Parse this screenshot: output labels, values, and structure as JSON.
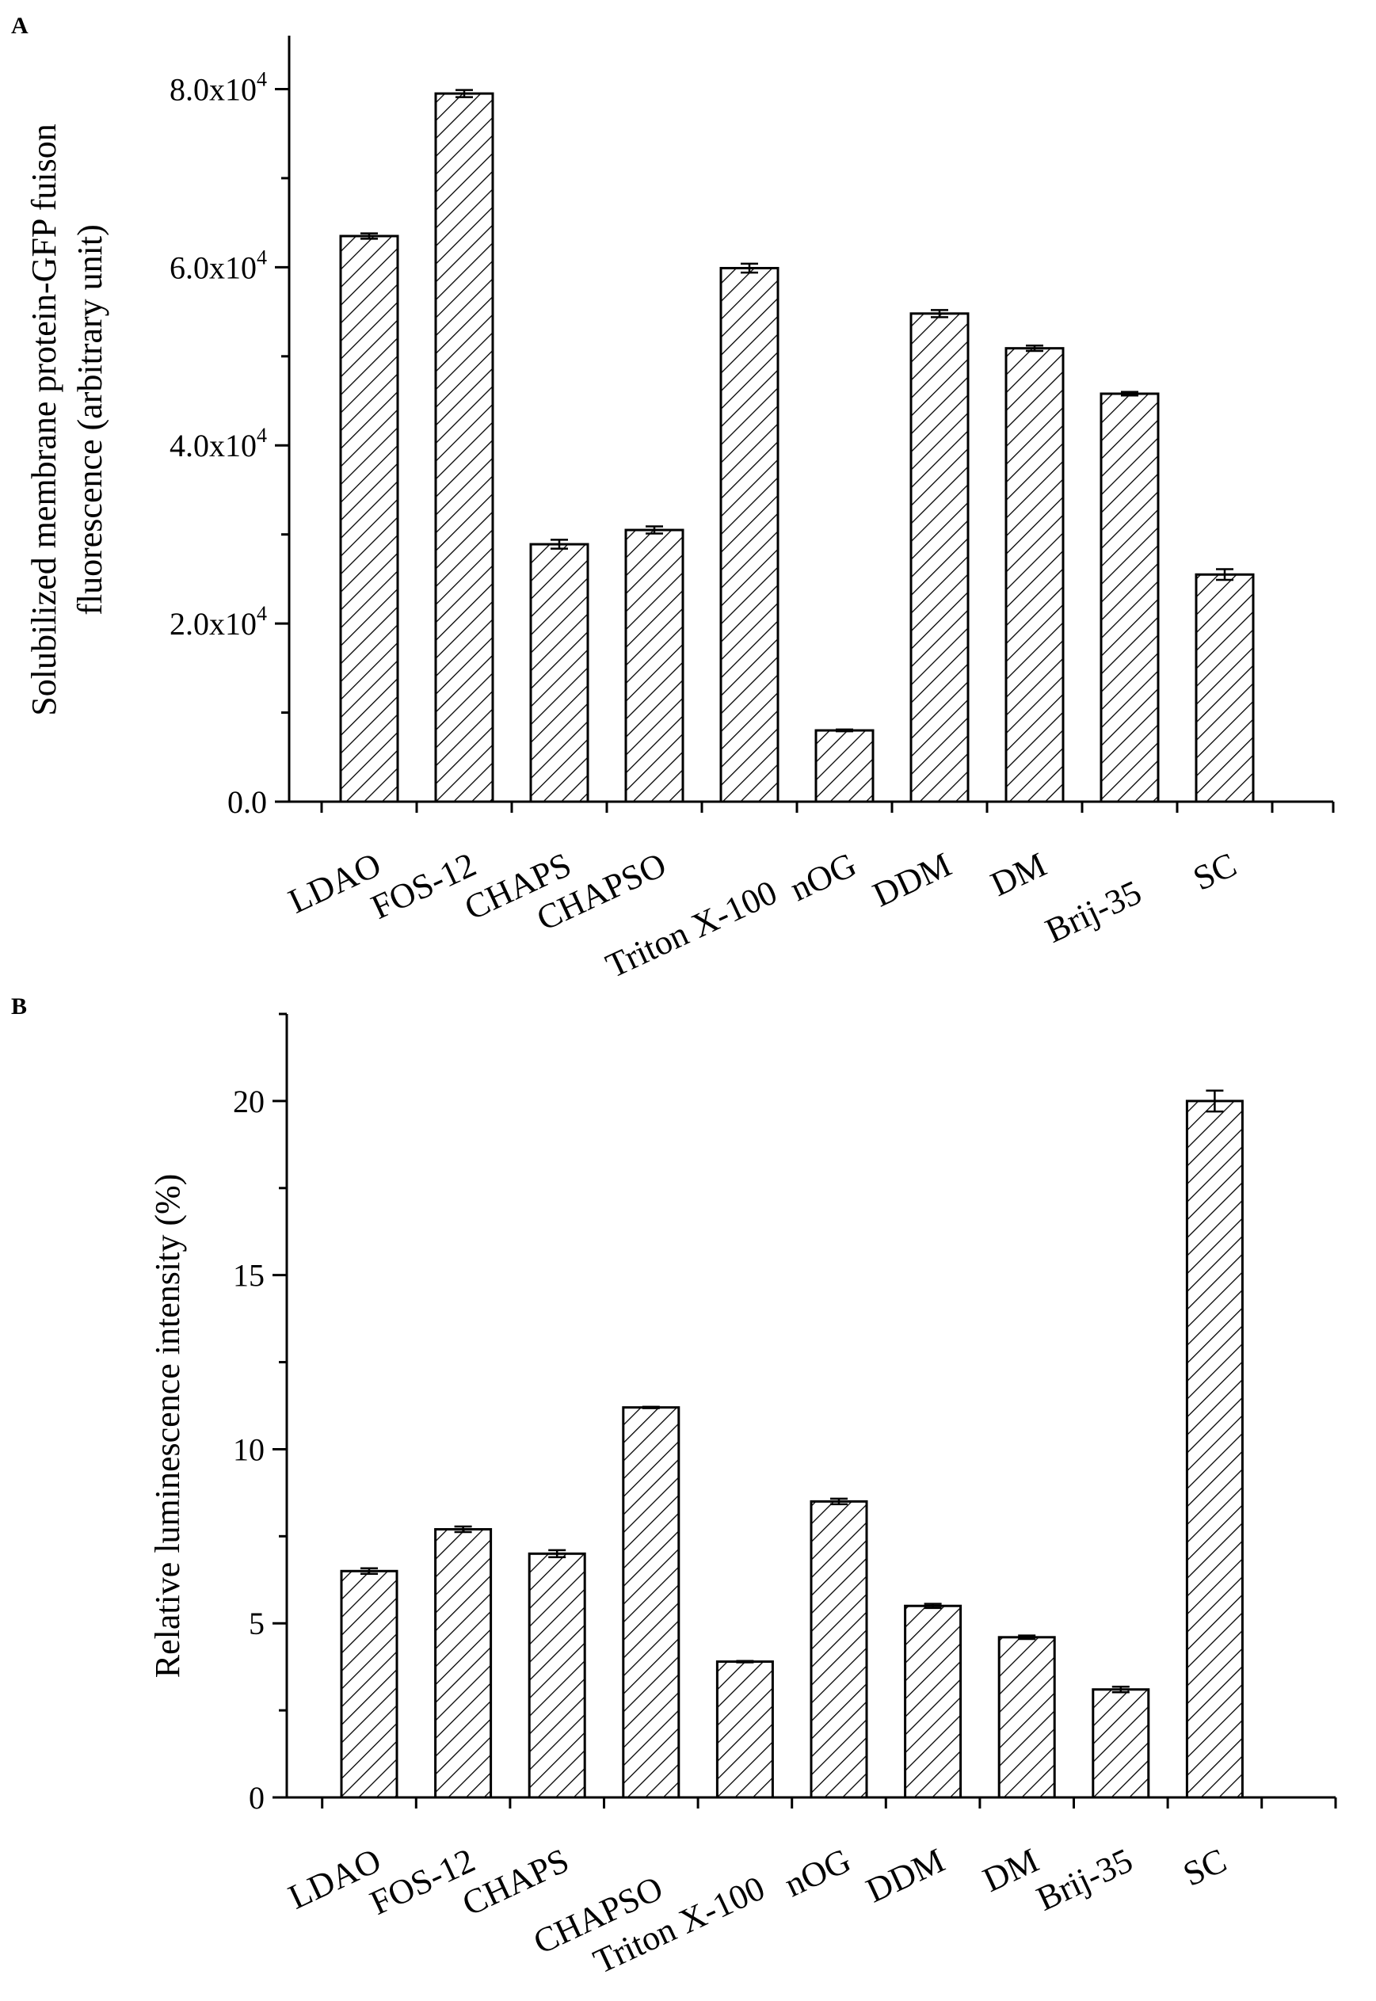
{
  "chart_data": [
    {
      "panel": "A",
      "type": "bar",
      "title": "",
      "xlabel": "",
      "ylabel": "Solubilized membrane protein-GFP fuison",
      "ylabel2": "fluorescence (arbitrary unit)",
      "ylim": [
        0,
        86000
      ],
      "yticks": [
        {
          "value": 0,
          "mant": "0.0",
          "exp": ""
        },
        {
          "value": 20000,
          "mant": "2.0x10",
          "exp": "4"
        },
        {
          "value": 40000,
          "mant": "4.0x10",
          "exp": "4"
        },
        {
          "value": 60000,
          "mant": "6.0x10",
          "exp": "4"
        },
        {
          "value": 80000,
          "mant": "8.0x10",
          "exp": "4"
        }
      ],
      "grid": false,
      "categories": [
        "LDAO",
        "FOS-12",
        "CHAPS",
        "CHAPSO",
        "Triton X-100",
        "nOG",
        "DDM",
        "DM",
        "Brij-35",
        "SC"
      ],
      "values": [
        63500,
        79500,
        28900,
        30500,
        59900,
        8000,
        54800,
        50900,
        45800,
        25500
      ],
      "errors": [
        300,
        400,
        500,
        400,
        500,
        100,
        400,
        300,
        200,
        600
      ]
    },
    {
      "panel": "B",
      "type": "bar",
      "title": "",
      "xlabel": "",
      "ylabel": "Relative luminescence intensity (%)",
      "ylim": [
        0,
        22.5
      ],
      "yticks": [
        {
          "value": 0,
          "mant": "0",
          "exp": ""
        },
        {
          "value": 5,
          "mant": "5",
          "exp": ""
        },
        {
          "value": 10,
          "mant": "10",
          "exp": ""
        },
        {
          "value": 15,
          "mant": "15",
          "exp": ""
        },
        {
          "value": 20,
          "mant": "20",
          "exp": ""
        }
      ],
      "grid": false,
      "categories": [
        "LDAO",
        "FOS-12",
        "CHAPS",
        "CHAPSO",
        "Triton X-100",
        "nOG",
        "DDM",
        "DM",
        "Brij-35",
        "SC"
      ],
      "values": [
        6.5,
        7.7,
        7.0,
        11.2,
        3.9,
        8.5,
        5.5,
        4.6,
        3.1,
        20.0
      ],
      "errors": [
        0.08,
        0.08,
        0.1,
        0.02,
        0.02,
        0.08,
        0.06,
        0.05,
        0.08,
        0.3
      ]
    }
  ]
}
